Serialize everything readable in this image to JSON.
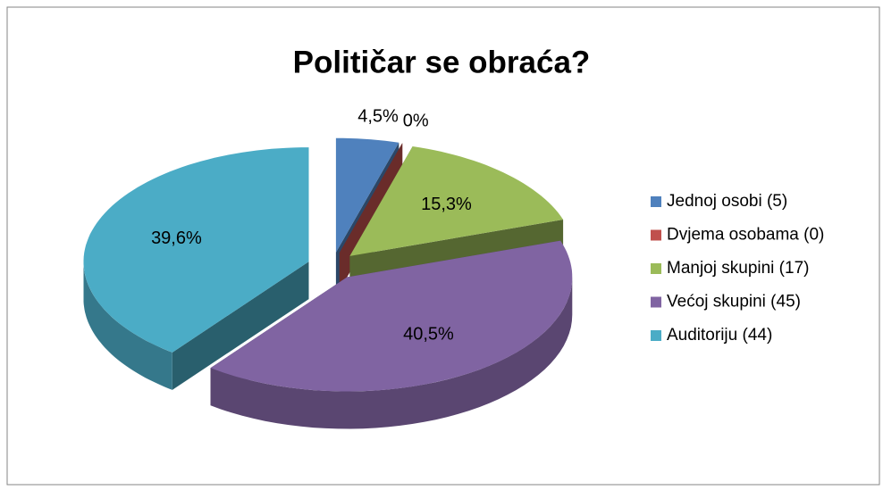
{
  "chart_data": {
    "type": "pie",
    "title": "Političar se obraća?",
    "categories": [
      "Jednoj osobi (5)",
      "Dvjema osobama (0)",
      "Manjoj skupini (17)",
      "Većoj skupini (45)",
      "Auditoriju (44)"
    ],
    "values": [
      4.5,
      0,
      15.3,
      40.5,
      39.6
    ],
    "value_labels": [
      "4,5%",
      "0%",
      "15,3%",
      "40,5%",
      "39,6%"
    ],
    "colors": [
      "#4f81bd",
      "#c0504d",
      "#9bbb59",
      "#8064a2",
      "#4bacc6"
    ],
    "legend": "right"
  }
}
